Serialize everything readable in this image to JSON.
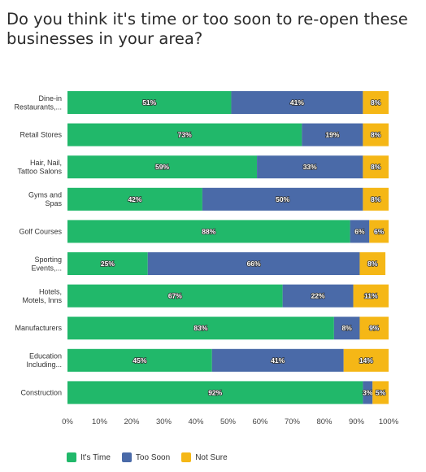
{
  "title": "Do you think it's time or too soon to re-open these businesses in your area?",
  "chart_data": {
    "type": "bar",
    "orientation": "horizontal",
    "stacked": true,
    "title": "Do you think it's time or too soon to re-open these businesses in your area?",
    "categories": [
      [
        "Dine-in",
        "Restaurants,..."
      ],
      [
        "Retail Stores"
      ],
      [
        "Hair, Nail,",
        "Tattoo Salons"
      ],
      [
        "Gyms and",
        "Spas"
      ],
      [
        "Golf Courses"
      ],
      [
        "Sporting",
        "Events,..."
      ],
      [
        "Hotels,",
        "Motels, Inns"
      ],
      [
        "Manufacturers"
      ],
      [
        "Education",
        "Including..."
      ],
      [
        "Construction"
      ]
    ],
    "series": [
      {
        "name": "It's Time",
        "color": "#21b86a",
        "values": [
          51,
          73,
          59,
          42,
          88,
          25,
          67,
          83,
          45,
          92
        ]
      },
      {
        "name": "Too Soon",
        "color": "#4a6aa8",
        "values": [
          41,
          19,
          33,
          50,
          6,
          66,
          22,
          8,
          41,
          3
        ]
      },
      {
        "name": "Not Sure",
        "color": "#f5b716",
        "values": [
          8,
          8,
          8,
          8,
          6,
          8,
          11,
          9,
          14,
          5
        ]
      }
    ],
    "xlim": [
      0,
      100
    ],
    "xticks": [
      "0%",
      "10%",
      "20%",
      "30%",
      "40%",
      "50%",
      "60%",
      "70%",
      "80%",
      "90%",
      "100%"
    ],
    "grid": false,
    "legend_position": "bottom-left"
  }
}
